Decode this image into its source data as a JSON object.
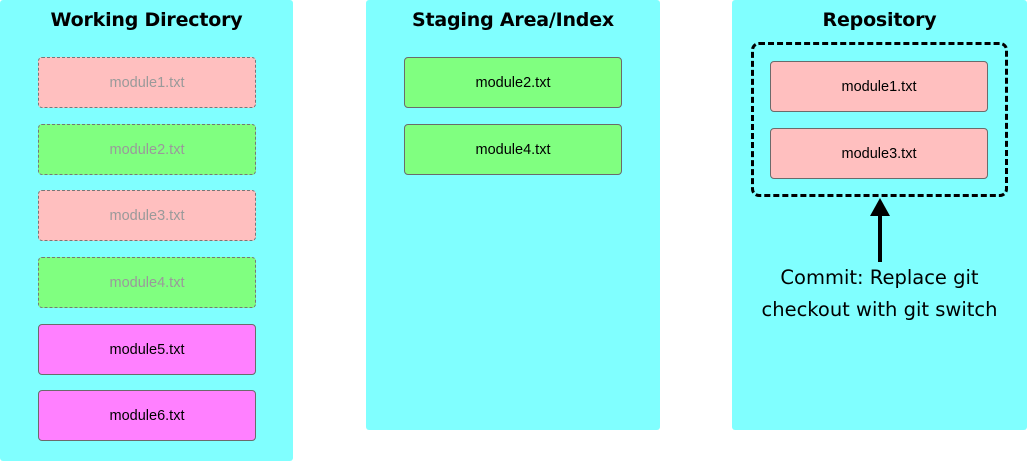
{
  "colors": {
    "panel_bg": "#80ffff",
    "file_red": "#ffbfbf",
    "file_green": "#80ff80",
    "file_magenta": "#ff80ff",
    "faded_text": "#9a9a9a"
  },
  "working_directory": {
    "title": "Working Directory",
    "files": [
      {
        "name": "module1.txt",
        "color": "#ffbfbf",
        "faded": true
      },
      {
        "name": "module2.txt",
        "color": "#80ff80",
        "faded": true
      },
      {
        "name": "module3.txt",
        "color": "#ffbfbf",
        "faded": true
      },
      {
        "name": "module4.txt",
        "color": "#80ff80",
        "faded": true
      },
      {
        "name": "module5.txt",
        "color": "#ff80ff",
        "faded": false
      },
      {
        "name": "module6.txt",
        "color": "#ff80ff",
        "faded": false
      }
    ]
  },
  "staging_area": {
    "title": "Staging Area/Index",
    "files": [
      {
        "name": "module2.txt",
        "color": "#80ff80",
        "faded": false
      },
      {
        "name": "module4.txt",
        "color": "#80ff80",
        "faded": false
      }
    ]
  },
  "repository": {
    "title": "Repository",
    "files": [
      {
        "name": "module1.txt",
        "color": "#ffbfbf",
        "faded": false
      },
      {
        "name": "module3.txt",
        "color": "#ffbfbf",
        "faded": false
      }
    ],
    "commit_line1": "Commit: Replace git",
    "commit_line2": "checkout with git switch",
    "arrow_icon": "arrow-up-icon"
  }
}
